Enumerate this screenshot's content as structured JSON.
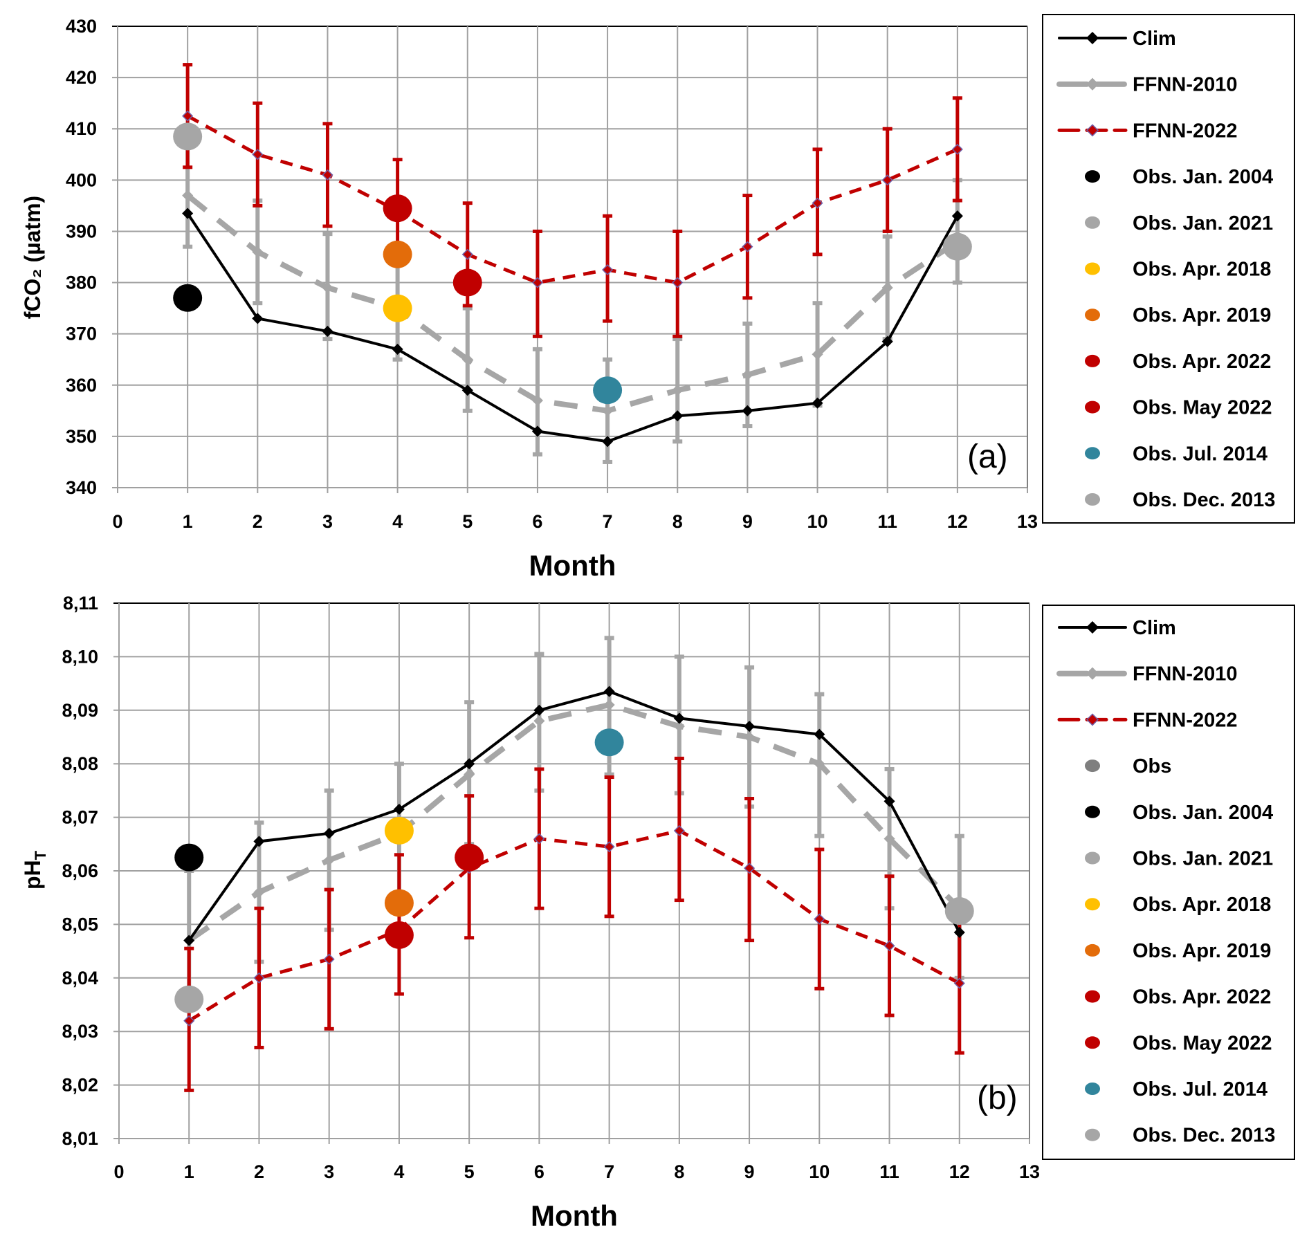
{
  "chart_data": [
    {
      "type": "line",
      "panel_label": "(a)",
      "xlabel": "Month",
      "ylabel": "fCO₂ (µatm)",
      "xlim": [
        0,
        13
      ],
      "ylim": [
        340,
        430
      ],
      "xticks": [
        "0",
        "1",
        "2",
        "3",
        "4",
        "5",
        "6",
        "7",
        "8",
        "9",
        "10",
        "11",
        "12",
        "13"
      ],
      "yticks": [
        "340",
        "350",
        "360",
        "370",
        "380",
        "390",
        "400",
        "410",
        "420",
        "430"
      ],
      "grid": true,
      "legend_position": "right",
      "x": [
        1,
        2,
        3,
        4,
        5,
        6,
        7,
        8,
        9,
        10,
        11,
        12
      ],
      "series": [
        {
          "name": "Clim",
          "color": "#000000",
          "style": "solid",
          "values": [
            393.5,
            373,
            370.5,
            367,
            359,
            351,
            349,
            354,
            355,
            356.5,
            368.5,
            393
          ]
        },
        {
          "name": "FFNN-2010",
          "color": "#a6a6a6",
          "style": "dashed",
          "values": [
            397,
            386,
            379,
            375,
            365,
            357,
            355,
            359,
            362,
            366,
            379,
            388
          ],
          "err_low": [
            387,
            376,
            369,
            365,
            355,
            346.5,
            345,
            349,
            352,
            356,
            369,
            380
          ],
          "err_high": [
            407,
            396,
            389.5,
            385,
            375,
            367,
            365,
            369,
            372,
            376,
            389,
            400
          ]
        },
        {
          "name": "FFNN-2022",
          "color": "#c00000",
          "style": "dashed",
          "values": [
            412.5,
            405,
            401,
            394,
            385.5,
            380,
            382.5,
            380,
            387,
            395.5,
            400,
            406
          ],
          "err_low": [
            402.5,
            395,
            391,
            384,
            375.5,
            369.5,
            372.5,
            369.5,
            377,
            385.5,
            390,
            396
          ],
          "err_high": [
            422.5,
            415,
            411,
            404,
            395.5,
            390,
            393,
            390,
            397,
            406,
            410,
            416
          ]
        }
      ],
      "observations": [
        {
          "name": "Obs. Jan. 2004",
          "color": "#000000",
          "x": 1,
          "y": 377
        },
        {
          "name": "Obs. Jan. 2021",
          "color": "#a6a6a6",
          "x": 1,
          "y": 408.5
        },
        {
          "name": "Obs. Apr. 2018",
          "color": "#ffc000",
          "x": 4,
          "y": 375
        },
        {
          "name": "Obs. Apr. 2019",
          "color": "#e36c0a",
          "x": 4,
          "y": 385.5
        },
        {
          "name": "Obs. Apr. 2022",
          "color": "#c00000",
          "x": 4,
          "y": 394.5
        },
        {
          "name": "Obs. May 2022",
          "color": "#c00000",
          "x": 5,
          "y": 380
        },
        {
          "name": "Obs. Jul. 2014",
          "color": "#31859c",
          "x": 7,
          "y": 359
        },
        {
          "name": "Obs. Dec. 2013",
          "color": "#a6a6a6",
          "x": 12,
          "y": 387
        }
      ],
      "legend": [
        "Clim",
        "FFNN-2010",
        "FFNN-2022",
        "Obs. Jan. 2004",
        "Obs. Jan. 2021",
        "Obs. Apr. 2018",
        "Obs. Apr. 2019",
        "Obs. Apr. 2022",
        "Obs. May 2022",
        "Obs. Jul. 2014",
        "Obs. Dec. 2013"
      ]
    },
    {
      "type": "line",
      "panel_label": "(b)",
      "xlabel": "Month",
      "ylabel": "pH",
      "ylabel_sub": "T",
      "xlim": [
        0,
        13
      ],
      "ylim": [
        8.01,
        8.11
      ],
      "xticks": [
        "0",
        "1",
        "2",
        "3",
        "4",
        "5",
        "6",
        "7",
        "8",
        "9",
        "10",
        "11",
        "12",
        "13"
      ],
      "yticks": [
        "8,01",
        "8,02",
        "8,03",
        "8,04",
        "8,05",
        "8,06",
        "8,07",
        "8,08",
        "8,09",
        "8,10",
        "8,11"
      ],
      "grid": true,
      "legend_position": "right",
      "x": [
        1,
        2,
        3,
        4,
        5,
        6,
        7,
        8,
        9,
        10,
        11,
        12
      ],
      "series": [
        {
          "name": "Clim",
          "color": "#000000",
          "style": "solid",
          "values": [
            8.047,
            8.0655,
            8.067,
            8.0715,
            8.08,
            8.09,
            8.0935,
            8.0885,
            8.087,
            8.0855,
            8.073,
            8.0485
          ]
        },
        {
          "name": "FFNN-2010",
          "color": "#a6a6a6",
          "style": "dashed",
          "values": [
            8.047,
            8.056,
            8.062,
            8.067,
            8.078,
            8.088,
            8.091,
            8.087,
            8.085,
            8.08,
            8.066,
            8.053
          ],
          "err_low": [
            8.034,
            8.043,
            8.049,
            8.054,
            8.065,
            8.075,
            8.078,
            8.0745,
            8.072,
            8.0665,
            8.053,
            8.04
          ],
          "err_high": [
            8.06,
            8.069,
            8.075,
            8.08,
            8.0915,
            8.1005,
            8.1035,
            8.1,
            8.098,
            8.093,
            8.079,
            8.0665
          ]
        },
        {
          "name": "FFNN-2022",
          "color": "#c00000",
          "style": "dashed",
          "values": [
            8.032,
            8.04,
            8.0435,
            8.049,
            8.0605,
            8.066,
            8.0645,
            8.0675,
            8.0605,
            8.051,
            8.046,
            8.039
          ],
          "err_low": [
            8.019,
            8.027,
            8.0305,
            8.037,
            8.0475,
            8.053,
            8.0515,
            8.0545,
            8.047,
            8.038,
            8.033,
            8.026
          ],
          "err_high": [
            8.0455,
            8.053,
            8.0565,
            8.063,
            8.074,
            8.079,
            8.0775,
            8.081,
            8.0735,
            8.064,
            8.059,
            8.052
          ]
        }
      ],
      "observations": [
        {
          "name": "Obs. Jan. 2004",
          "color": "#000000",
          "x": 1,
          "y": 8.0625
        },
        {
          "name": "Obs. Jan. 2021",
          "color": "#a6a6a6",
          "x": 1,
          "y": 8.036
        },
        {
          "name": "Obs. Apr. 2018",
          "color": "#ffc000",
          "x": 4,
          "y": 8.0675
        },
        {
          "name": "Obs. Apr. 2019",
          "color": "#e36c0a",
          "x": 4,
          "y": 8.054
        },
        {
          "name": "Obs. Apr. 2022",
          "color": "#c00000",
          "x": 4,
          "y": 8.048
        },
        {
          "name": "Obs. May 2022",
          "color": "#c00000",
          "x": 5,
          "y": 8.0625
        },
        {
          "name": "Obs. Jul. 2014",
          "color": "#31859c",
          "x": 7,
          "y": 8.084
        },
        {
          "name": "Obs. Dec. 2013",
          "color": "#a6a6a6",
          "x": 12,
          "y": 8.0525
        }
      ],
      "obs_legend_color": "#7f7f7f",
      "legend": [
        "Clim",
        "FFNN-2010",
        "FFNN-2022",
        "Obs",
        "Obs. Jan. 2004",
        "Obs. Jan. 2021",
        "Obs. Apr. 2018",
        "Obs. Apr. 2019",
        "Obs. Apr. 2022",
        "Obs. May 2022",
        "Obs. Jul. 2014",
        "Obs. Dec. 2013"
      ]
    }
  ]
}
